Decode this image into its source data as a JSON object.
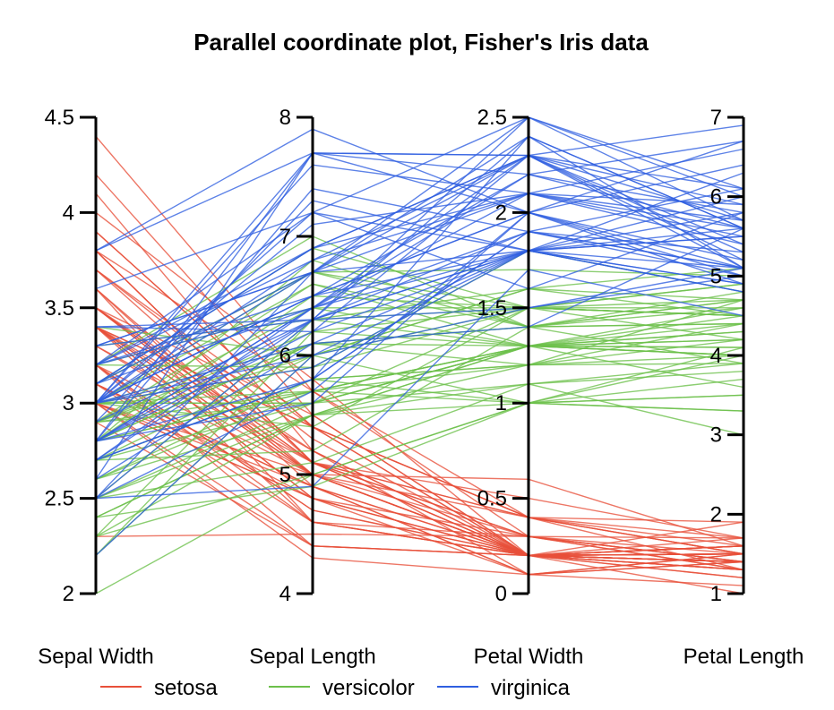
{
  "chart_data": {
    "type": "parallel-coordinates",
    "title": "Parallel coordinate plot, Fisher's Iris data",
    "axes": [
      {
        "name": "Sepal Width",
        "range": [
          2,
          4.5
        ],
        "ticks": [
          2,
          2.5,
          3,
          3.5,
          4,
          4.5
        ],
        "tick_labels": [
          "2",
          "2.5",
          "3",
          "3.5",
          "4",
          "4.5"
        ],
        "tick_side": "left"
      },
      {
        "name": "Sepal Length",
        "range": [
          4,
          8
        ],
        "ticks": [
          4,
          5,
          6,
          7,
          8
        ],
        "tick_labels": [
          "4",
          "5",
          "6",
          "7",
          "8"
        ],
        "tick_side": "left"
      },
      {
        "name": "Petal Width",
        "range": [
          0,
          2.5
        ],
        "ticks": [
          0,
          0.5,
          1,
          1.5,
          2,
          2.5
        ],
        "tick_labels": [
          "0",
          "0.5",
          "1",
          "1.5",
          "2",
          "2.5"
        ],
        "tick_side": "left"
      },
      {
        "name": "Petal Length",
        "range": [
          1,
          7
        ],
        "ticks": [
          1,
          2,
          3,
          4,
          5,
          6,
          7
        ],
        "tick_labels": [
          "1",
          "2",
          "3",
          "4",
          "5",
          "6",
          "7"
        ],
        "tick_side": "left"
      }
    ],
    "legend": {
      "placement": "bottom",
      "entries": [
        {
          "name": "setosa",
          "color": "#E8503A"
        },
        {
          "name": "versicolor",
          "color": "#6CC04A"
        },
        {
          "name": "virginica",
          "color": "#2F5FE0"
        }
      ]
    },
    "series": [
      {
        "name": "setosa",
        "color": "#E8503A",
        "rows": [
          [
            3.5,
            5.1,
            0.2,
            1.4
          ],
          [
            3.0,
            4.9,
            0.2,
            1.4
          ],
          [
            3.2,
            4.7,
            0.2,
            1.3
          ],
          [
            3.1,
            4.6,
            0.2,
            1.5
          ],
          [
            3.6,
            5.0,
            0.2,
            1.4
          ],
          [
            3.9,
            5.4,
            0.4,
            1.7
          ],
          [
            3.4,
            4.6,
            0.3,
            1.4
          ],
          [
            3.4,
            5.0,
            0.2,
            1.5
          ],
          [
            2.9,
            4.4,
            0.2,
            1.4
          ],
          [
            3.1,
            4.9,
            0.1,
            1.5
          ],
          [
            3.7,
            5.4,
            0.2,
            1.5
          ],
          [
            3.4,
            4.8,
            0.2,
            1.6
          ],
          [
            3.0,
            4.8,
            0.1,
            1.4
          ],
          [
            3.0,
            4.3,
            0.1,
            1.1
          ],
          [
            4.0,
            5.8,
            0.2,
            1.2
          ],
          [
            4.4,
            5.7,
            0.4,
            1.5
          ],
          [
            3.9,
            5.4,
            0.4,
            1.3
          ],
          [
            3.5,
            5.1,
            0.3,
            1.4
          ],
          [
            3.8,
            5.7,
            0.3,
            1.7
          ],
          [
            3.8,
            5.1,
            0.3,
            1.5
          ],
          [
            3.4,
            5.4,
            0.2,
            1.7
          ],
          [
            3.7,
            5.1,
            0.4,
            1.5
          ],
          [
            3.6,
            4.6,
            0.2,
            1.0
          ],
          [
            3.3,
            5.1,
            0.5,
            1.7
          ],
          [
            3.4,
            4.8,
            0.2,
            1.9
          ],
          [
            3.0,
            5.0,
            0.2,
            1.6
          ],
          [
            3.4,
            5.0,
            0.4,
            1.6
          ],
          [
            3.5,
            5.2,
            0.2,
            1.5
          ],
          [
            3.4,
            5.2,
            0.2,
            1.4
          ],
          [
            3.2,
            4.7,
            0.2,
            1.6
          ],
          [
            3.1,
            4.8,
            0.2,
            1.6
          ],
          [
            3.4,
            5.4,
            0.4,
            1.5
          ],
          [
            4.1,
            5.2,
            0.1,
            1.5
          ],
          [
            4.2,
            5.5,
            0.2,
            1.4
          ],
          [
            3.1,
            4.9,
            0.2,
            1.5
          ],
          [
            3.2,
            5.0,
            0.2,
            1.2
          ],
          [
            3.5,
            5.5,
            0.2,
            1.3
          ],
          [
            3.6,
            4.9,
            0.1,
            1.4
          ],
          [
            3.0,
            4.4,
            0.2,
            1.3
          ],
          [
            3.4,
            5.1,
            0.2,
            1.5
          ],
          [
            3.5,
            5.0,
            0.3,
            1.3
          ],
          [
            2.3,
            4.5,
            0.3,
            1.3
          ],
          [
            3.2,
            4.4,
            0.2,
            1.3
          ],
          [
            3.5,
            5.0,
            0.6,
            1.6
          ],
          [
            3.8,
            5.1,
            0.4,
            1.9
          ],
          [
            3.0,
            4.8,
            0.3,
            1.4
          ],
          [
            3.8,
            5.1,
            0.2,
            1.6
          ],
          [
            3.2,
            4.6,
            0.2,
            1.4
          ],
          [
            3.7,
            5.3,
            0.2,
            1.5
          ],
          [
            3.3,
            5.0,
            0.2,
            1.4
          ]
        ]
      },
      {
        "name": "versicolor",
        "color": "#6CC04A",
        "rows": [
          [
            3.2,
            7.0,
            1.4,
            4.7
          ],
          [
            3.2,
            6.4,
            1.5,
            4.5
          ],
          [
            3.1,
            6.9,
            1.5,
            4.9
          ],
          [
            2.3,
            5.5,
            1.3,
            4.0
          ],
          [
            2.8,
            6.5,
            1.5,
            4.6
          ],
          [
            2.8,
            5.7,
            1.3,
            4.5
          ],
          [
            3.3,
            6.3,
            1.6,
            4.7
          ],
          [
            2.4,
            4.9,
            1.0,
            3.3
          ],
          [
            2.9,
            6.6,
            1.3,
            4.6
          ],
          [
            2.7,
            5.2,
            1.4,
            3.9
          ],
          [
            2.0,
            5.0,
            1.0,
            3.5
          ],
          [
            3.0,
            5.9,
            1.5,
            4.2
          ],
          [
            2.2,
            6.0,
            1.0,
            4.0
          ],
          [
            2.9,
            6.1,
            1.4,
            4.7
          ],
          [
            2.9,
            5.6,
            1.3,
            3.6
          ],
          [
            3.1,
            6.7,
            1.4,
            4.4
          ],
          [
            3.0,
            5.6,
            1.5,
            4.5
          ],
          [
            2.7,
            5.8,
            1.0,
            4.1
          ],
          [
            2.2,
            6.2,
            1.5,
            4.5
          ],
          [
            2.5,
            5.6,
            1.1,
            3.9
          ],
          [
            3.2,
            5.9,
            1.8,
            4.8
          ],
          [
            2.8,
            6.1,
            1.3,
            4.0
          ],
          [
            2.5,
            6.3,
            1.5,
            4.9
          ],
          [
            2.8,
            6.1,
            1.2,
            4.7
          ],
          [
            2.9,
            6.4,
            1.3,
            4.3
          ],
          [
            3.0,
            6.6,
            1.4,
            4.4
          ],
          [
            2.8,
            6.8,
            1.4,
            4.8
          ],
          [
            3.0,
            6.7,
            1.7,
            5.0
          ],
          [
            2.9,
            6.0,
            1.5,
            4.5
          ],
          [
            2.6,
            5.7,
            1.0,
            3.5
          ],
          [
            2.4,
            5.5,
            1.1,
            3.8
          ],
          [
            2.4,
            5.5,
            1.0,
            3.7
          ],
          [
            2.7,
            5.8,
            1.2,
            3.9
          ],
          [
            2.7,
            6.0,
            1.6,
            5.1
          ],
          [
            3.0,
            5.4,
            1.5,
            4.5
          ],
          [
            3.4,
            6.0,
            1.6,
            4.5
          ],
          [
            3.1,
            6.7,
            1.5,
            4.7
          ],
          [
            2.3,
            6.3,
            1.3,
            4.4
          ],
          [
            3.0,
            5.6,
            1.3,
            4.1
          ],
          [
            2.5,
            5.5,
            1.3,
            4.0
          ],
          [
            2.6,
            5.5,
            1.2,
            4.4
          ],
          [
            3.0,
            6.1,
            1.4,
            4.6
          ],
          [
            2.6,
            5.8,
            1.2,
            4.0
          ],
          [
            2.3,
            5.0,
            1.0,
            3.3
          ],
          [
            2.7,
            5.6,
            1.3,
            4.2
          ],
          [
            3.0,
            5.7,
            1.2,
            4.2
          ],
          [
            2.9,
            5.7,
            1.3,
            4.2
          ],
          [
            2.9,
            6.2,
            1.3,
            4.3
          ],
          [
            2.5,
            5.1,
            1.1,
            3.0
          ],
          [
            2.8,
            5.7,
            1.3,
            4.1
          ]
        ]
      },
      {
        "name": "virginica",
        "color": "#2F5FE0",
        "rows": [
          [
            3.3,
            6.3,
            2.5,
            6.0
          ],
          [
            2.7,
            5.8,
            1.9,
            5.1
          ],
          [
            3.0,
            7.1,
            2.1,
            5.9
          ],
          [
            2.9,
            6.3,
            1.8,
            5.6
          ],
          [
            3.0,
            6.5,
            2.2,
            5.8
          ],
          [
            3.0,
            7.6,
            2.1,
            6.6
          ],
          [
            2.5,
            4.9,
            1.7,
            4.5
          ],
          [
            2.9,
            7.3,
            1.8,
            6.3
          ],
          [
            2.5,
            6.7,
            1.8,
            5.8
          ],
          [
            3.6,
            7.2,
            2.5,
            6.1
          ],
          [
            3.2,
            6.5,
            2.0,
            5.1
          ],
          [
            2.7,
            6.4,
            1.9,
            5.3
          ],
          [
            3.0,
            6.8,
            2.1,
            5.5
          ],
          [
            2.5,
            5.7,
            2.0,
            5.0
          ],
          [
            2.8,
            5.8,
            2.4,
            5.1
          ],
          [
            3.2,
            6.4,
            2.3,
            5.3
          ],
          [
            3.0,
            6.5,
            1.8,
            5.5
          ],
          [
            3.8,
            7.7,
            2.2,
            6.7
          ],
          [
            2.6,
            7.7,
            2.3,
            6.9
          ],
          [
            2.2,
            6.0,
            1.5,
            5.0
          ],
          [
            3.2,
            6.9,
            2.3,
            5.7
          ],
          [
            2.8,
            5.6,
            2.0,
            4.9
          ],
          [
            2.8,
            7.7,
            2.0,
            6.7
          ],
          [
            2.7,
            6.3,
            1.8,
            4.9
          ],
          [
            3.3,
            6.7,
            2.1,
            5.7
          ],
          [
            3.2,
            7.2,
            1.8,
            6.0
          ],
          [
            2.8,
            6.2,
            1.8,
            4.8
          ],
          [
            3.0,
            6.1,
            1.8,
            4.9
          ],
          [
            2.8,
            6.4,
            2.1,
            5.6
          ],
          [
            3.0,
            7.2,
            1.6,
            5.8
          ],
          [
            2.8,
            7.4,
            1.9,
            6.1
          ],
          [
            3.8,
            7.9,
            2.0,
            6.4
          ],
          [
            2.8,
            6.4,
            2.2,
            5.6
          ],
          [
            2.8,
            6.3,
            1.5,
            5.1
          ],
          [
            2.6,
            6.1,
            1.4,
            5.6
          ],
          [
            3.0,
            7.7,
            2.3,
            6.1
          ],
          [
            3.4,
            6.3,
            2.4,
            5.6
          ],
          [
            3.1,
            6.4,
            1.8,
            5.5
          ],
          [
            3.0,
            6.0,
            1.8,
            4.8
          ],
          [
            3.1,
            6.9,
            2.1,
            5.4
          ],
          [
            3.1,
            6.7,
            2.4,
            5.6
          ],
          [
            3.1,
            6.9,
            2.3,
            5.1
          ],
          [
            2.7,
            5.8,
            1.9,
            5.1
          ],
          [
            3.2,
            6.8,
            2.3,
            5.9
          ],
          [
            3.3,
            6.7,
            2.5,
            5.7
          ],
          [
            3.0,
            6.7,
            2.3,
            5.2
          ],
          [
            2.5,
            6.3,
            1.9,
            5.0
          ],
          [
            3.0,
            6.5,
            2.0,
            5.2
          ],
          [
            3.4,
            6.2,
            2.3,
            5.4
          ],
          [
            3.0,
            5.9,
            1.8,
            5.1
          ]
        ]
      }
    ]
  }
}
